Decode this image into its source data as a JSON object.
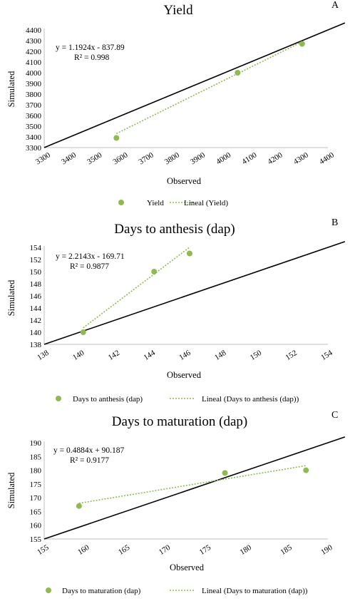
{
  "chart_data": [
    {
      "type": "scatter",
      "panel_letter": "A",
      "title": "Yield",
      "xlabel": "Observed",
      "ylabel": "Simulated",
      "xlim": [
        3300,
        4400
      ],
      "ylim": [
        3300,
        4400
      ],
      "xticks": [
        "3300",
        "3400",
        "3500",
        "3600",
        "3700",
        "3800",
        "3900",
        "4000",
        "4100",
        "4200",
        "4300",
        "4400"
      ],
      "yticks": [
        "3300",
        "3400",
        "3500",
        "3600",
        "3700",
        "3800",
        "3900",
        "4000",
        "4100",
        "4200",
        "4300",
        "4400"
      ],
      "x": [
        3580,
        4050,
        4300
      ],
      "y": [
        3390,
        4000,
        4270
      ],
      "equation": "y = 1.1924x - 837.89",
      "r2": "R² = 0.998",
      "trend": {
        "slope": 1.1924,
        "intercept": -837.89
      },
      "one_to_one_line": true,
      "series": [
        {
          "name": "Yield",
          "color": "#8fba52"
        },
        {
          "name": "Lineal (Yield)",
          "color": "#8fba52"
        }
      ],
      "legend": "bottom"
    },
    {
      "type": "scatter",
      "panel_letter": "B",
      "title": "Days to anthesis (dap)",
      "xlabel": "Observed",
      "ylabel": "Simulated",
      "xlim": [
        138,
        154
      ],
      "ylim": [
        138,
        154
      ],
      "xticks": [
        "138",
        "140",
        "142",
        "144",
        "146",
        "148",
        "150",
        "152",
        "154"
      ],
      "yticks": [
        "138",
        "140",
        "142",
        "144",
        "146",
        "148",
        "150",
        "152",
        "154"
      ],
      "x": [
        140.2,
        144.2,
        146.2
      ],
      "y": [
        140,
        150,
        153
      ],
      "equation": "y = 2.2143x - 169.71",
      "r2": "R² = 0.9877",
      "trend": {
        "slope": 2.2143,
        "intercept": -169.71
      },
      "one_to_one_line": true,
      "series": [
        {
          "name": "Days to anthesis (dap)",
          "color": "#8fba52"
        },
        {
          "name": "Lineal (Days to anthesis (dap))",
          "color": "#8fba52"
        }
      ],
      "legend": "bottom"
    },
    {
      "type": "scatter",
      "panel_letter": "C",
      "title": "Days to maturation (dap)",
      "xlabel": "Observed",
      "ylabel": "Simulated",
      "xlim": [
        155,
        190
      ],
      "ylim": [
        155,
        190
      ],
      "xticks": [
        "155",
        "160",
        "165",
        "170",
        "175",
        "180",
        "185",
        "190"
      ],
      "yticks": [
        "155",
        "160",
        "165",
        "170",
        "175",
        "180",
        "185",
        "190"
      ],
      "x": [
        159.3,
        177.3,
        187.3
      ],
      "y": [
        167,
        179,
        180
      ],
      "equation": "y = 0.4884x + 90.187",
      "r2": "R² = 0.9177",
      "trend": {
        "slope": 0.4884,
        "intercept": 90.187
      },
      "one_to_one_line": true,
      "series": [
        {
          "name": "Days to maturation (dap)",
          "color": "#8fba52"
        },
        {
          "name": "Lineal (Days to maturation (dap))",
          "color": "#8fba52"
        }
      ],
      "legend": "bottom"
    }
  ]
}
